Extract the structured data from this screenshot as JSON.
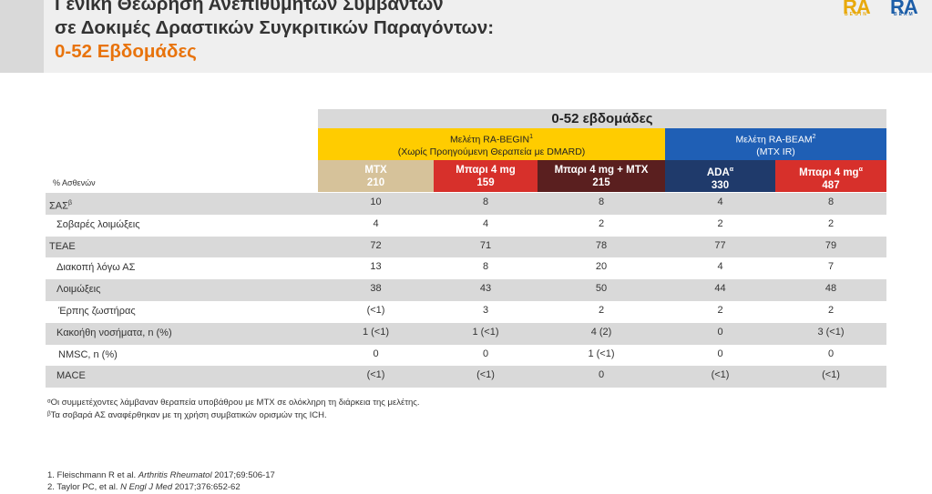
{
  "title": {
    "line1": "Γενική Θεώρηση Ανεπιθύμητων Συμβάντων",
    "line2": "σε Δοκιμές Δραστικών Συγκριτικών Παραγόντων:",
    "line3": "0-52 Εβδομάδες"
  },
  "logo": {
    "text1": "RA",
    "text2": "RA",
    "sub1": "BEGIN",
    "sub2": "BEAM"
  },
  "table": {
    "period_header": "0-52 εβδομάδες",
    "studies": [
      {
        "name": "Μελέτη RA-BEGIN",
        "ref": "1",
        "subtitle": "(Χωρίς Προηγούμενη Θεραπεία με DMARD)"
      },
      {
        "name": "Μελέτη RA-BEAM",
        "ref": "2",
        "subtitle": "(MTX IR)"
      }
    ],
    "row_header": "% Ασθενών",
    "arms": [
      {
        "name": "MTX",
        "sup": "",
        "n": "210"
      },
      {
        "name": "Μπαρι 4 mg",
        "sup": "",
        "n": "159"
      },
      {
        "name": "Μπαρι 4 mg + MTX",
        "sup": "",
        "n": "215"
      },
      {
        "name": "ADA",
        "sup": "α",
        "n": "330"
      },
      {
        "name": "Μπαρι 4 mg",
        "sup": "α",
        "n": "487"
      }
    ],
    "rows": [
      {
        "label": "ΣΑΣ",
        "sup": "β",
        "indent": 0,
        "values": [
          "10",
          "8",
          "8",
          "4",
          "8"
        ]
      },
      {
        "label": "Σοβαρές λοιμώξεις",
        "sup": "",
        "indent": 1,
        "values": [
          "4",
          "4",
          "2",
          "2",
          "2"
        ]
      },
      {
        "label": "TEAE",
        "sup": "",
        "indent": 0,
        "values": [
          "72",
          "71",
          "78",
          "77",
          "79"
        ]
      },
      {
        "label": "Διακοπή λόγω ΑΣ",
        "sup": "",
        "indent": 1,
        "values": [
          "13",
          "8",
          "20",
          "4",
          "7"
        ]
      },
      {
        "label": "Λοιμώξεις",
        "sup": "",
        "indent": 1,
        "values": [
          "38",
          "43",
          "50",
          "44",
          "48"
        ]
      },
      {
        "label": "Έρπης ζωστήρας",
        "sup": "",
        "indent": 2,
        "values": [
          "(<1)",
          "3",
          "2",
          "2",
          "2"
        ]
      },
      {
        "label": "Κακοήθη νοσήματα, n (%)",
        "sup": "",
        "indent": 1,
        "values": [
          "1 (<1)",
          "1 (<1)",
          "4 (2)",
          "0",
          "3 (<1)"
        ]
      },
      {
        "label": "NMSC, n (%)",
        "sup": "",
        "indent": 2,
        "values": [
          "0",
          "0",
          "1 (<1)",
          "0",
          "0"
        ]
      },
      {
        "label": "MACE",
        "sup": "",
        "indent": 1,
        "values": [
          "(<1)",
          "(<1)",
          "0",
          "(<1)",
          "(<1)"
        ]
      }
    ]
  },
  "footnotes": [
    "ᵅΟι συμμετέχοντες λάμβαναν θεραπεία υποβάθρου με MTX σε ολόκληρη τη διάρκεια της μελέτης.",
    "ᵝΤα σοβαρά ΑΣ αναφέρθηκαν με τη χρήση συμβατικών ορισμών της ICH."
  ],
  "references": [
    {
      "pre": "1. Fleischmann R et al. ",
      "journal": "Arthritis Rheumatol",
      "post": " 2017;69:506-17"
    },
    {
      "pre": "2. Taylor PC, et al. ",
      "journal": "N Engl J Med",
      "post": " 2017;376:652-62"
    }
  ],
  "colors": {
    "title_accent": "#e8730c",
    "begin_study": "#ffcc00",
    "beam_study": "#1f5fb5",
    "mtx": "#d6c29a",
    "bari": "#d7302b",
    "bari_mtx": "#5a1f1f",
    "ada": "#1f3a6b",
    "shade": "#d9d9d9"
  }
}
